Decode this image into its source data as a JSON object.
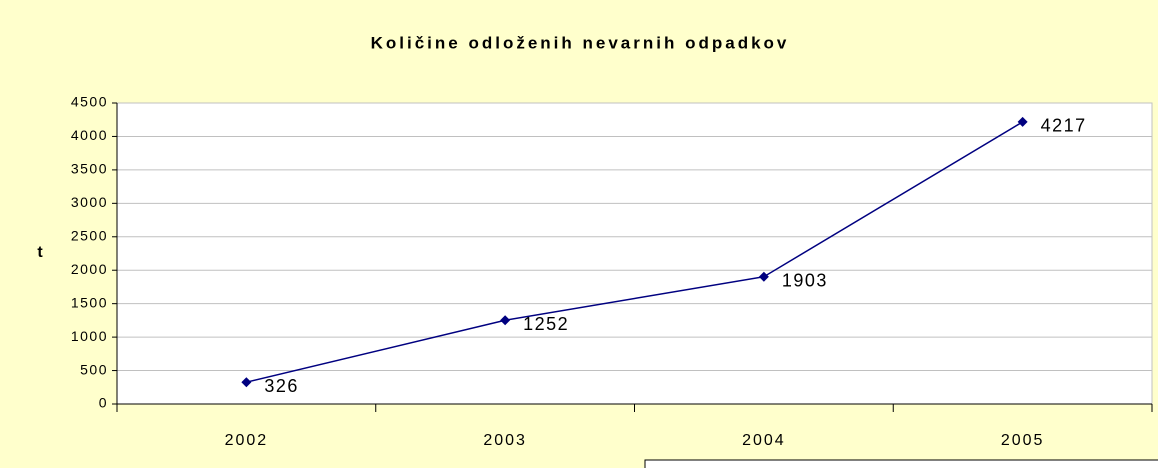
{
  "chart_data": {
    "type": "line",
    "title": "Količine odloženih nevarnih odpadkov",
    "y_label": "t",
    "categories": [
      "2002",
      "2003",
      "2004",
      "2005"
    ],
    "values": [
      326,
      1252,
      1903,
      4217
    ],
    "color": "#000080",
    "ylim": [
      0,
      4500
    ],
    "yticks": [
      0,
      500,
      1000,
      1500,
      2000,
      2500,
      3000,
      3500,
      4000,
      4500
    ],
    "grid": true
  }
}
